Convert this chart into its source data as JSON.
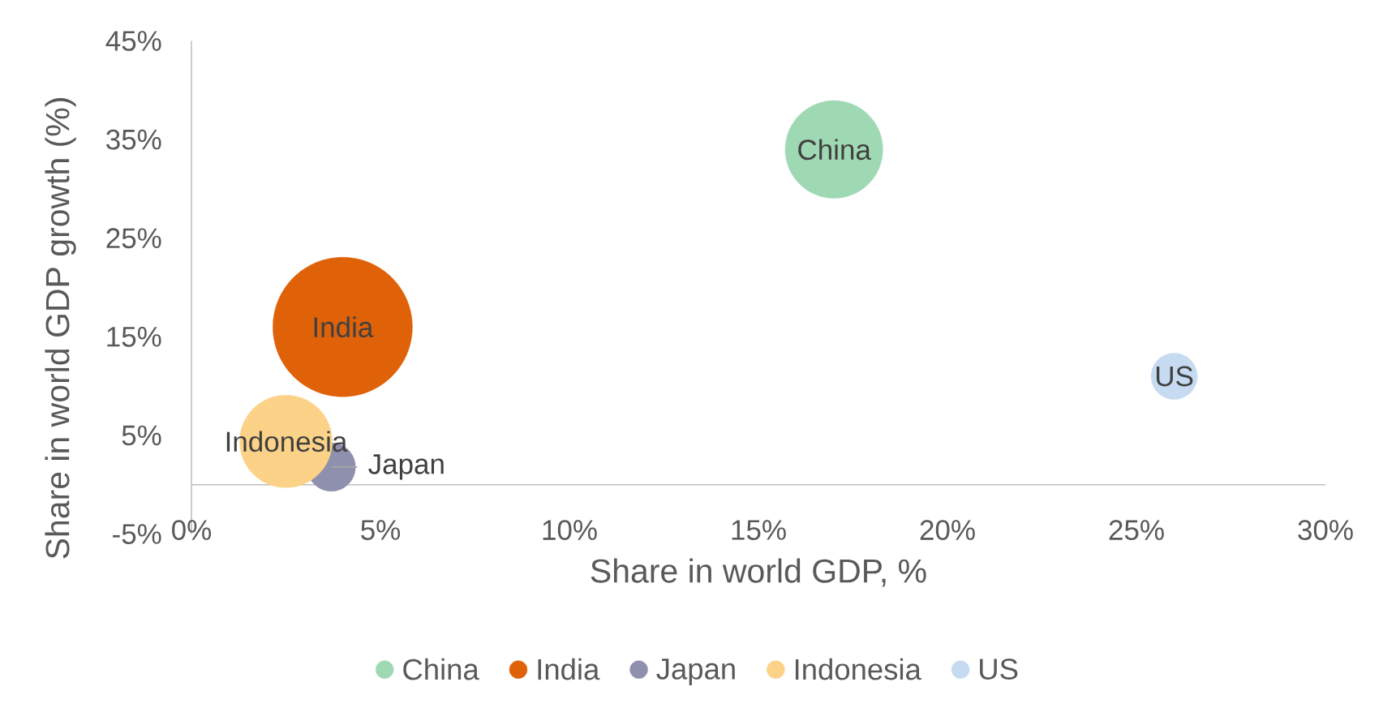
{
  "chart_data": {
    "type": "bubble",
    "xlabel": "Share in world GDP, %",
    "ylabel": "Share in world GDP growth (%)",
    "series": [
      {
        "name": "China",
        "color": "#9fd9b4",
        "x": [
          17
        ],
        "values": [
          34
        ],
        "sizes": [
          0.49
        ]
      },
      {
        "name": "India",
        "color": "#df6108",
        "x": [
          4
        ],
        "values": [
          16
        ],
        "sizes": [
          1
        ]
      },
      {
        "name": "Japan",
        "color": "#8f8fae",
        "x": [
          3.7
        ],
        "values": [
          1.8
        ],
        "sizes": [
          0.12
        ]
      },
      {
        "name": "Indonesia",
        "color": "#fbd287",
        "x": [
          2.5
        ],
        "values": [
          4.4
        ],
        "sizes": [
          0.44
        ]
      },
      {
        "name": "US",
        "color": "#c6dbf1",
        "x": [
          26
        ],
        "values": [
          11
        ],
        "sizes": [
          0.11
        ]
      }
    ],
    "xlim": [
      0,
      30
    ],
    "xticks": [
      {
        "value": 0,
        "label": "0%"
      },
      {
        "value": 5,
        "label": "5%"
      },
      {
        "value": 10,
        "label": "10%"
      },
      {
        "value": 15,
        "label": "15%"
      },
      {
        "value": 20,
        "label": "20%"
      },
      {
        "value": 25,
        "label": "25%"
      },
      {
        "value": 30,
        "label": "30%"
      }
    ],
    "ylim": [
      -5,
      45
    ],
    "yticks": [
      {
        "value": -5,
        "label": "-5%"
      },
      {
        "value": 5,
        "label": "5%"
      },
      {
        "value": 15,
        "label": "15%"
      },
      {
        "value": 25,
        "label": "25%"
      },
      {
        "value": 35,
        "label": "35%"
      },
      {
        "value": 45,
        "label": "45%"
      }
    ],
    "legend": "bottom"
  }
}
